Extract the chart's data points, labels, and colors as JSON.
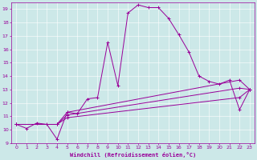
{
  "xlabel": "Windchill (Refroidissement éolien,°C)",
  "background_color": "#cce8e8",
  "line_color": "#990099",
  "xlim": [
    -0.5,
    23.5
  ],
  "ylim": [
    9,
    19.5
  ],
  "yticks": [
    9,
    10,
    11,
    12,
    13,
    14,
    15,
    16,
    17,
    18,
    19
  ],
  "xticks": [
    0,
    1,
    2,
    3,
    4,
    5,
    6,
    7,
    8,
    9,
    10,
    11,
    12,
    13,
    14,
    15,
    16,
    17,
    18,
    19,
    20,
    21,
    22,
    23
  ],
  "curve1_x": [
    0,
    1,
    2,
    3,
    4,
    5,
    6,
    7,
    8,
    9,
    10,
    11,
    12,
    13,
    14,
    15,
    16,
    17,
    18,
    19,
    20,
    21,
    22,
    23
  ],
  "curve1_y": [
    10.4,
    10.1,
    10.5,
    10.4,
    9.3,
    11.3,
    11.2,
    12.3,
    12.4,
    16.5,
    13.3,
    18.7,
    19.3,
    19.1,
    19.1,
    18.3,
    17.1,
    15.8,
    14.0,
    13.6,
    13.4,
    13.7,
    11.5,
    13.0
  ],
  "curve2_x": [
    0,
    4,
    5,
    22,
    23
  ],
  "curve2_y": [
    10.4,
    10.4,
    11.3,
    13.7,
    13.0
  ],
  "curve3_x": [
    0,
    4,
    5,
    22,
    23
  ],
  "curve3_y": [
    10.4,
    10.4,
    11.1,
    13.1,
    13.0
  ],
  "curve4_x": [
    0,
    4,
    5,
    22,
    23
  ],
  "curve4_y": [
    10.4,
    10.4,
    10.9,
    12.4,
    13.0
  ]
}
